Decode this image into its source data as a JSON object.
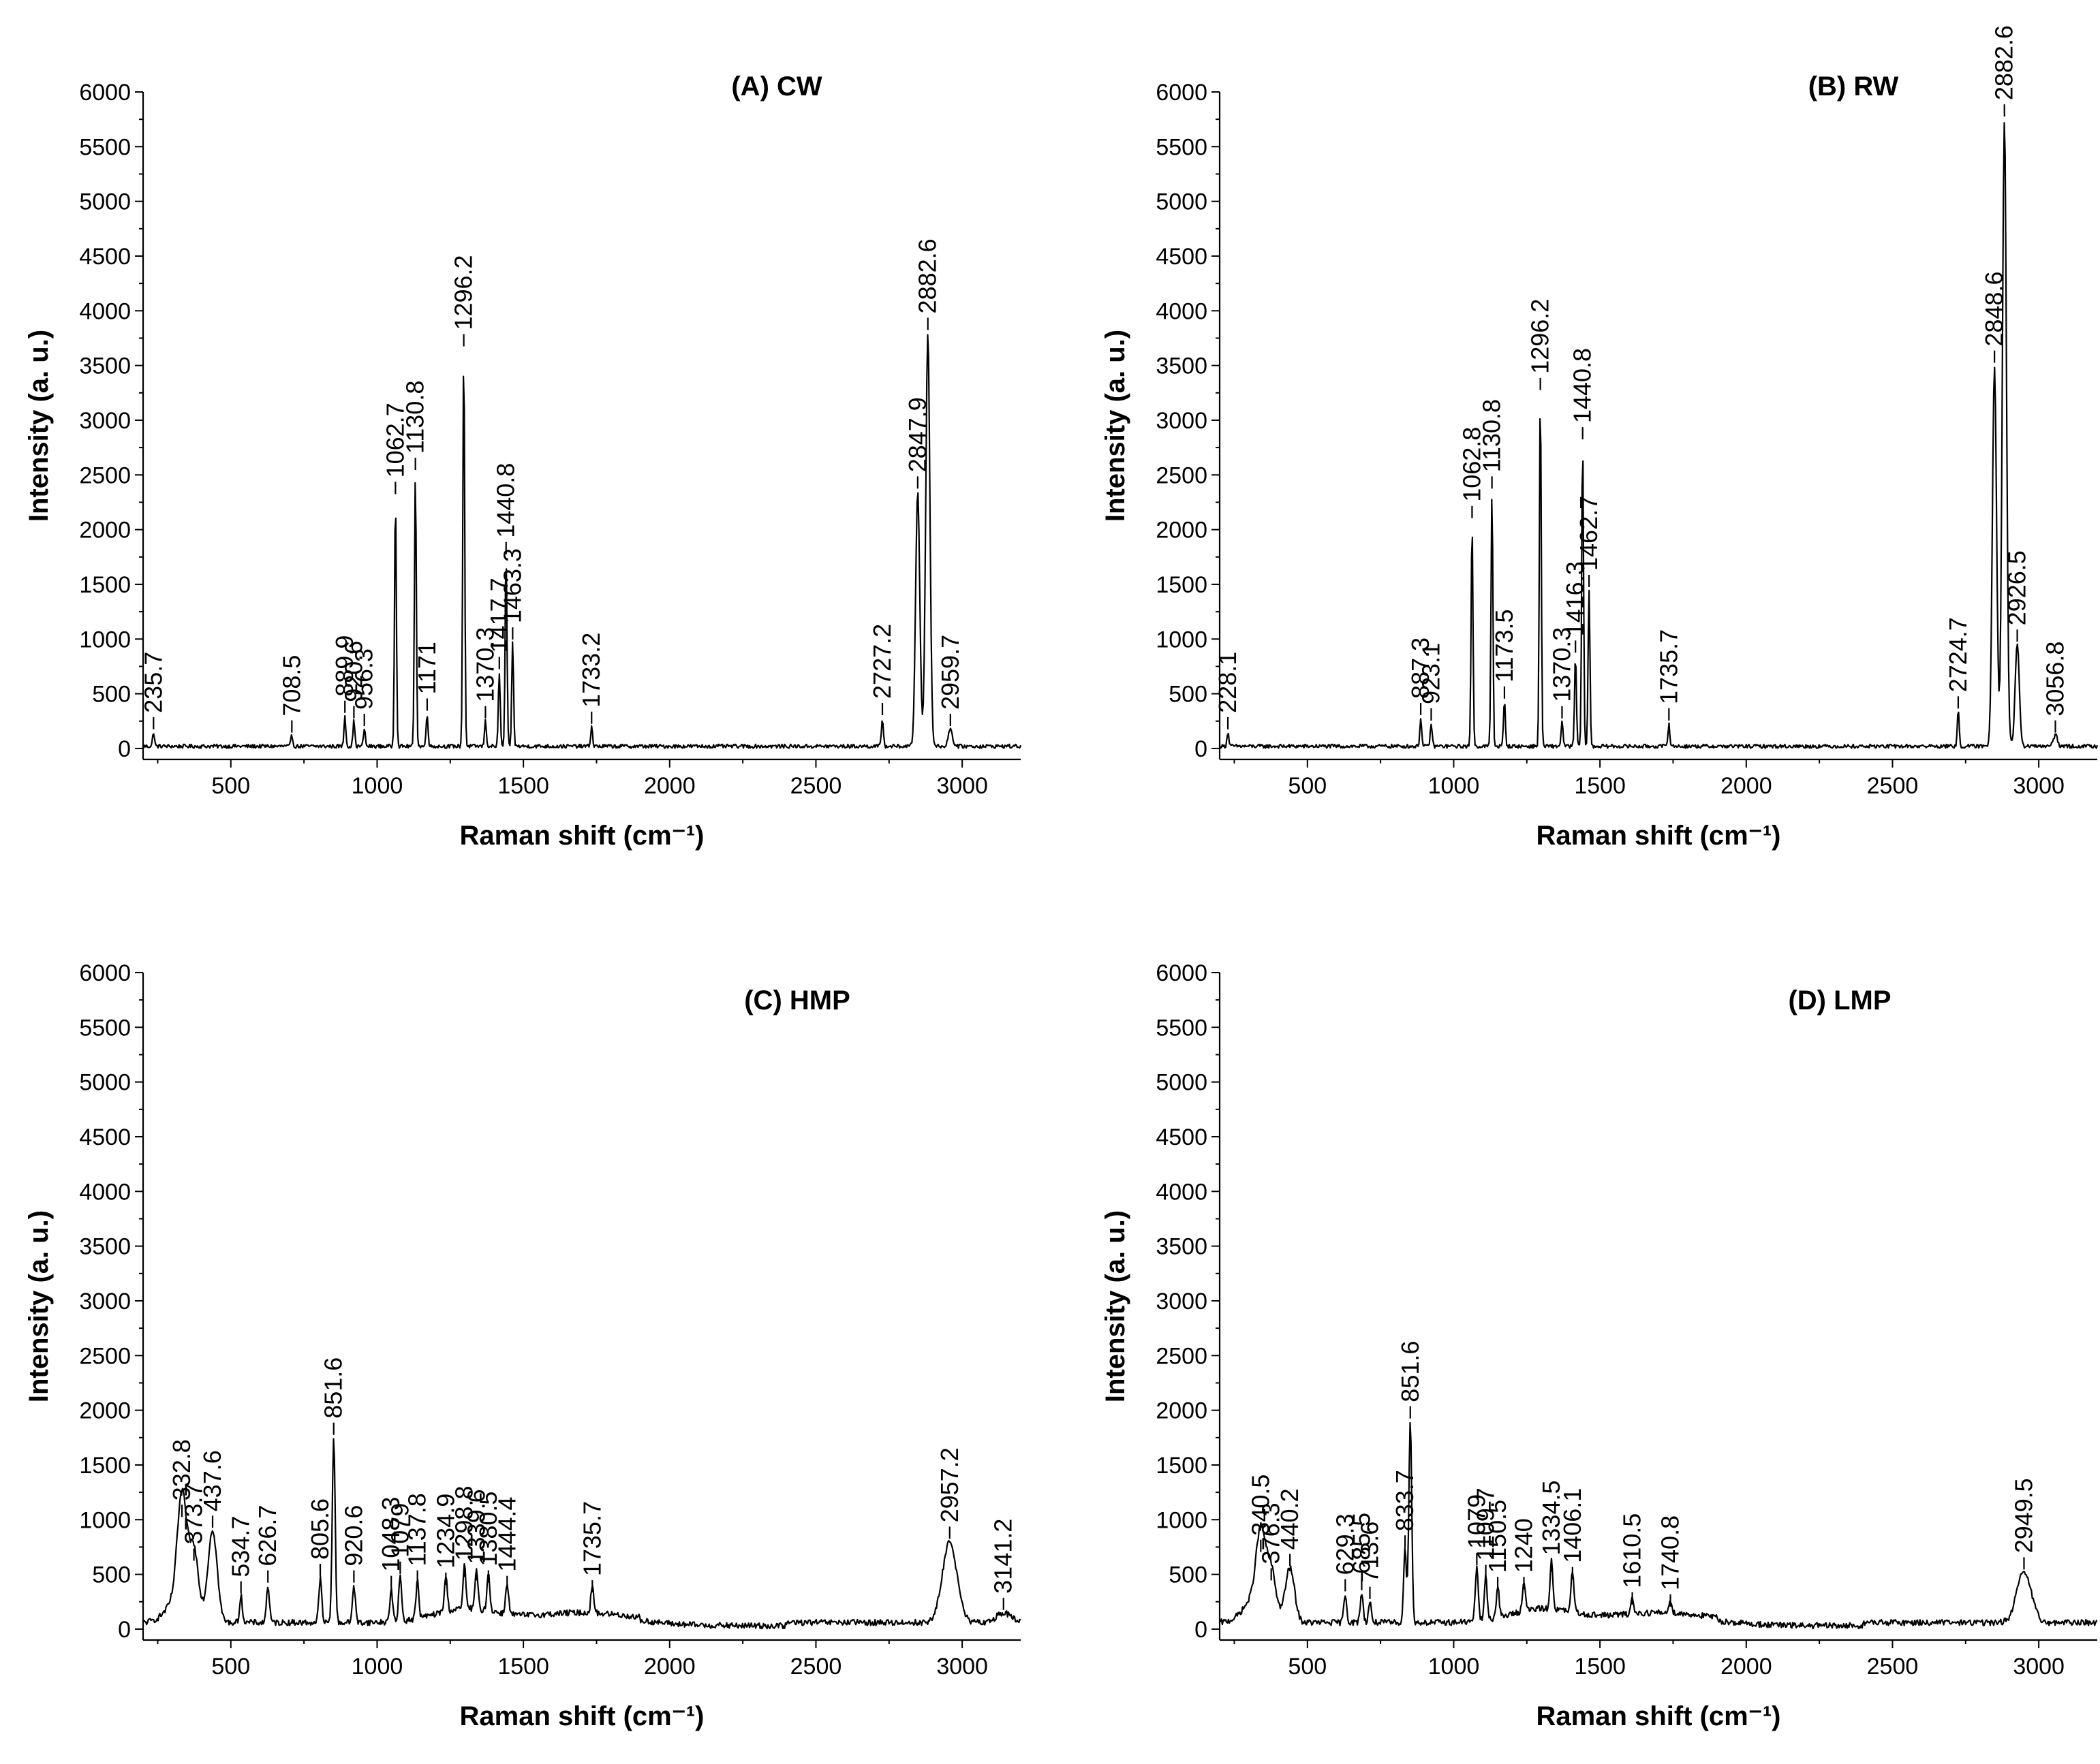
{
  "chart_data": [
    {
      "type": "line",
      "title": "(A) CW",
      "xlabel": "Raman shift (cm⁻¹)",
      "ylabel": "Intensity (a. u.)",
      "xlim": [
        200,
        3200
      ],
      "ylim": [
        -100,
        6000
      ],
      "xticks": [
        "500",
        "1000",
        "1500",
        "2000",
        "2500",
        "3000"
      ],
      "yticks": [
        "0",
        "500",
        "1000",
        "1500",
        "2000",
        "2500",
        "3000",
        "3500",
        "4000",
        "4500",
        "5000",
        "5500",
        "6000"
      ],
      "baseline": 20,
      "peaks": [
        {
          "x": 235.7,
          "y": 150,
          "label": "235.7"
        },
        {
          "x": 708.5,
          "y": 120,
          "label": "708.5"
        },
        {
          "x": 889.9,
          "y": 300,
          "label": "889.9"
        },
        {
          "x": 920.6,
          "y": 250,
          "label": "920.6"
        },
        {
          "x": 956.3,
          "y": 180,
          "label": "956.3"
        },
        {
          "x": 1062.7,
          "y": 2300,
          "label": "1062.7"
        },
        {
          "x": 1130.8,
          "y": 2520,
          "label": "1130.8"
        },
        {
          "x": 1171,
          "y": 320,
          "label": "1171"
        },
        {
          "x": 1296.2,
          "y": 3650,
          "label": "1296.2"
        },
        {
          "x": 1370.3,
          "y": 250,
          "label": "1370.3"
        },
        {
          "x": 1417.7,
          "y": 700,
          "label": "1417.7"
        },
        {
          "x": 1440.8,
          "y": 1750,
          "label": "1440.8"
        },
        {
          "x": 1463.3,
          "y": 970,
          "label": "1463.3"
        },
        {
          "x": 1733.2,
          "y": 200,
          "label": "1733.2"
        },
        {
          "x": 2727.2,
          "y": 280,
          "label": "2727.2"
        },
        {
          "x": 2847.9,
          "y": 2350,
          "label": "2847.9"
        },
        {
          "x": 2882.6,
          "y": 3800,
          "label": "2882.6"
        },
        {
          "x": 2959.7,
          "y": 180,
          "label": "2959.7"
        }
      ]
    },
    {
      "type": "line",
      "title": "(B) RW",
      "xlabel": "Raman shift (cm⁻¹)",
      "ylabel": "Intensity (a. u.)",
      "xlim": [
        200,
        3200
      ],
      "ylim": [
        -100,
        6000
      ],
      "xticks": [
        "500",
        "1000",
        "1500",
        "2000",
        "2500",
        "3000"
      ],
      "yticks": [
        "0",
        "500",
        "1000",
        "1500",
        "2000",
        "2500",
        "3000",
        "3500",
        "4000",
        "4500",
        "5000",
        "5500",
        "6000"
      ],
      "baseline": 20,
      "peaks": [
        {
          "x": 228.1,
          "y": 150,
          "label": "228.1"
        },
        {
          "x": 887.3,
          "y": 280,
          "label": "887.3"
        },
        {
          "x": 923.1,
          "y": 230,
          "label": "923.1"
        },
        {
          "x": 1062.8,
          "y": 2080,
          "label": "1062.8"
        },
        {
          "x": 1130.8,
          "y": 2350,
          "label": "1130.8"
        },
        {
          "x": 1173.5,
          "y": 430,
          "label": "1173.5"
        },
        {
          "x": 1296.2,
          "y": 3250,
          "label": "1296.2"
        },
        {
          "x": 1370.3,
          "y": 250,
          "label": "1370.3"
        },
        {
          "x": 1416.3,
          "y": 850,
          "label": "1416.3"
        },
        {
          "x": 1440.8,
          "y": 2800,
          "label": "1440.8"
        },
        {
          "x": 1462.7,
          "y": 1450,
          "label": "1462.7"
        },
        {
          "x": 1735.7,
          "y": 230,
          "label": "1735.7"
        },
        {
          "x": 2724.7,
          "y": 340,
          "label": "2724.7"
        },
        {
          "x": 2848.6,
          "y": 3500,
          "label": "2848.6"
        },
        {
          "x": 2882.6,
          "y": 5750,
          "label": "2882.6"
        },
        {
          "x": 2926.5,
          "y": 950,
          "label": "2926.5"
        },
        {
          "x": 3056.8,
          "y": 120,
          "label": "3056.8"
        }
      ]
    },
    {
      "type": "line",
      "title": "(C) HMP",
      "xlabel": "Raman shift (cm⁻¹)",
      "ylabel": "Intensity (a. u.)",
      "xlim": [
        200,
        3200
      ],
      "ylim": [
        -100,
        6000
      ],
      "xticks": [
        "500",
        "1000",
        "1500",
        "2000",
        "2500",
        "3000"
      ],
      "yticks": [
        "0",
        "500",
        "1000",
        "1500",
        "2000",
        "2500",
        "3000",
        "3500",
        "4000",
        "4500",
        "5000",
        "5500",
        "6000"
      ],
      "baseline": 60,
      "peaks": [
        {
          "x": 332.8,
          "y": 1000,
          "label": "332.8"
        },
        {
          "x": 373.7,
          "y": 600,
          "label": "373.7"
        },
        {
          "x": 437.6,
          "y": 900,
          "label": "437.6"
        },
        {
          "x": 534.7,
          "y": 300,
          "label": "534.7"
        },
        {
          "x": 626.7,
          "y": 400,
          "label": "626.7"
        },
        {
          "x": 805.6,
          "y": 460,
          "label": "805.6"
        },
        {
          "x": 851.6,
          "y": 1750,
          "label": "851.6"
        },
        {
          "x": 920.6,
          "y": 400,
          "label": "920.6"
        },
        {
          "x": 1048.3,
          "y": 350,
          "label": "1048.3"
        },
        {
          "x": 1079,
          "y": 480,
          "label": "1079"
        },
        {
          "x": 1137.8,
          "y": 400,
          "label": "1137.8"
        },
        {
          "x": 1234.9,
          "y": 380,
          "label": "1234.9"
        },
        {
          "x": 1298.8,
          "y": 450,
          "label": "1298.8"
        },
        {
          "x": 1339.6,
          "y": 420,
          "label": "1339.6"
        },
        {
          "x": 1380.5,
          "y": 400,
          "label": "1380.5"
        },
        {
          "x": 1444.4,
          "y": 350,
          "label": "1444.4"
        },
        {
          "x": 1735.7,
          "y": 310,
          "label": "1735.7"
        },
        {
          "x": 2957.2,
          "y": 800,
          "label": "2957.2"
        },
        {
          "x": 3141.2,
          "y": 150,
          "label": "3141.2"
        }
      ]
    },
    {
      "type": "line",
      "title": "(D) LMP",
      "xlabel": "Raman shift (cm⁻¹)",
      "ylabel": "Intensity (a. u.)",
      "xlim": [
        200,
        3200
      ],
      "ylim": [
        -100,
        6000
      ],
      "xticks": [
        "500",
        "1000",
        "1500",
        "2000",
        "2500",
        "3000"
      ],
      "yticks": [
        "0",
        "500",
        "1000",
        "1500",
        "2000",
        "2500",
        "3000",
        "3500",
        "4000",
        "4500",
        "5000",
        "5500",
        "6000"
      ],
      "baseline": 60,
      "peaks": [
        {
          "x": 340.5,
          "y": 680,
          "label": "340.5"
        },
        {
          "x": 376.3,
          "y": 420,
          "label": "376.3"
        },
        {
          "x": 440.2,
          "y": 550,
          "label": "440.2"
        },
        {
          "x": 629.3,
          "y": 320,
          "label": "629.3"
        },
        {
          "x": 685.5,
          "y": 330,
          "label": "685.5"
        },
        {
          "x": 713.6,
          "y": 250,
          "label": "713.6"
        },
        {
          "x": 833.7,
          "y": 720,
          "label": "833.7"
        },
        {
          "x": 851.6,
          "y": 1900,
          "label": "851.6"
        },
        {
          "x": 1079,
          "y": 560,
          "label": "1079"
        },
        {
          "x": 1109.7,
          "y": 450,
          "label": "1109.7"
        },
        {
          "x": 1150.5,
          "y": 340,
          "label": "1150.5"
        },
        {
          "x": 1240,
          "y": 340,
          "label": "1240"
        },
        {
          "x": 1334.5,
          "y": 500,
          "label": "1334.5"
        },
        {
          "x": 1406.1,
          "y": 430,
          "label": "1406.1"
        },
        {
          "x": 1610.5,
          "y": 200,
          "label": "1610.5"
        },
        {
          "x": 1740.8,
          "y": 180,
          "label": "1740.8"
        },
        {
          "x": 2949.5,
          "y": 520,
          "label": "2949.5"
        }
      ]
    }
  ]
}
